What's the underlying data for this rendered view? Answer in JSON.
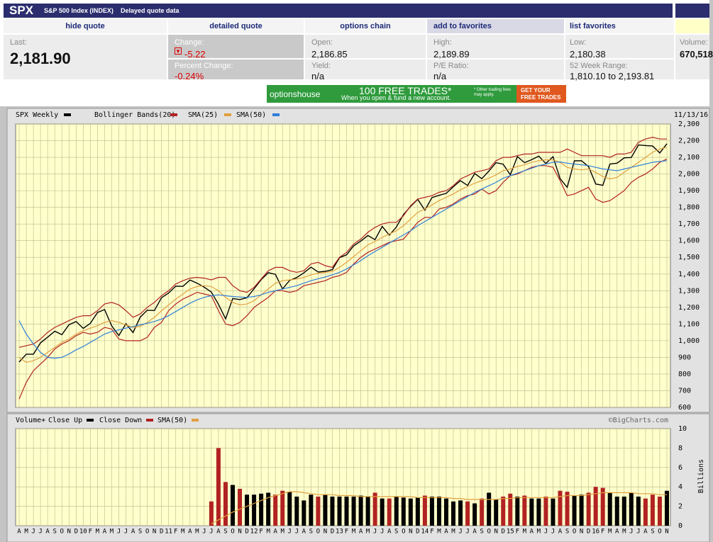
{
  "header": {
    "symbol": "SPX",
    "name": "S&P 500 Index (INDEX)",
    "note": "Delayed quote data"
  },
  "nav": [
    "hide quote",
    "detailed quote",
    "options chain",
    "add to favorites",
    "list favorites"
  ],
  "quote": [
    {
      "label": "Last:",
      "value": "2,181.90"
    },
    {
      "label": "Change:",
      "value": "-5.22"
    },
    {
      "label": "Percent Change:",
      "value": "-0.24%"
    },
    {
      "label": "Open:",
      "value": "2,186.85"
    },
    {
      "label": "Yield:",
      "value": "n/a"
    },
    {
      "label": "High:",
      "value": "2,189.89"
    },
    {
      "label": "P/E Ratio:",
      "value": "n/a"
    },
    {
      "label": "Low:",
      "value": "2,180.38"
    },
    {
      "label": "52 Week Range:",
      "value": "1,810.10 to 2,193.81"
    },
    {
      "label": "Volume:",
      "value": "670,518"
    }
  ],
  "banner": {
    "brand": "optionshouse",
    "headline": "100 FREE TRADES*",
    "subline": "When you open & fund a new account.",
    "fine_print": "* Other trading fees may apply.",
    "cta": "GET YOUR FREE TRADES"
  },
  "chart_data": [
    {
      "type": "line",
      "date": "11/13/16",
      "grid": true,
      "ylim": [
        600,
        2300
      ],
      "yticks": [
        600,
        700,
        800,
        900,
        {
          "value": 1000,
          "label": "1,000"
        },
        {
          "value": 1100,
          "label": "1,100"
        },
        {
          "value": 1200,
          "label": "1,200"
        },
        {
          "value": 1300,
          "label": "1,300"
        },
        {
          "value": 1400,
          "label": "1,400"
        },
        {
          "value": 1500,
          "label": "1,500"
        },
        {
          "value": 1600,
          "label": "1,600"
        },
        {
          "value": 1700,
          "label": "1,700"
        },
        {
          "value": 1800,
          "label": "1,800"
        },
        {
          "value": 1900,
          "label": "1,900"
        },
        {
          "value": 2000,
          "label": "2,000"
        },
        {
          "value": 2100,
          "label": "2,100"
        },
        {
          "value": 2200,
          "label": "2,200"
        },
        {
          "value": 2300,
          "label": "2,300"
        }
      ],
      "series": [
        {
          "name": "SPX Weekly",
          "color": "#000000",
          "values": [
            872,
            919,
            919,
            987,
            1021,
            1057,
            1036,
            1096,
            1115,
            1074,
            1104,
            1169,
            1187,
            1089,
            1031,
            1102,
            1049,
            1141,
            1183,
            1181,
            1258,
            1286,
            1327,
            1326,
            1364,
            1345,
            1321,
            1292,
            1219,
            1131,
            1253,
            1247,
            1258,
            1312,
            1366,
            1408,
            1398,
            1310,
            1362,
            1379,
            1407,
            1441,
            1412,
            1416,
            1426,
            1498,
            1515,
            1569,
            1598,
            1631,
            1606,
            1686,
            1633,
            1682,
            1757,
            1806,
            1848,
            1783,
            1859,
            1872,
            1884,
            1924,
            1960,
            1931,
            2003,
            1972,
            2018,
            2068,
            2059,
            1995,
            2105,
            2068,
            2086,
            2107,
            2063,
            2104,
            1972,
            1920,
            2079,
            2080,
            2044,
            1940,
            1932,
            2060,
            2065,
            2097,
            2099,
            2174,
            2171,
            2168,
            2126,
            2182
          ]
        },
        {
          "name": "Bollinger Bands(20)",
          "color": "#b22222",
          "values": [
            960,
            970,
            980,
            1010,
            1050,
            1080,
            1100,
            1120,
            1140,
            1150,
            1150,
            1180,
            1220,
            1230,
            1215,
            1180,
            1140,
            1160,
            1200,
            1230,
            1270,
            1300,
            1340,
            1360,
            1375,
            1380,
            1375,
            1365,
            1380,
            1380,
            1330,
            1300,
            1290,
            1320,
            1370,
            1420,
            1440,
            1440,
            1420,
            1410,
            1420,
            1460,
            1470,
            1450,
            1440,
            1500,
            1530,
            1580,
            1610,
            1650,
            1680,
            1700,
            1710,
            1710,
            1750,
            1810,
            1850,
            1860,
            1870,
            1890,
            1900,
            1930,
            1970,
            1990,
            2010,
            2020,
            2030,
            2080,
            2100,
            2100,
            2110,
            2120,
            2120,
            2130,
            2130,
            2130,
            2130,
            2150,
            2130,
            2110,
            2110,
            2110,
            2110,
            2100,
            2120,
            2120,
            2130,
            2190,
            2210,
            2220,
            2210,
            2210
          ],
          "lower": [
            650,
            750,
            820,
            860,
            900,
            950,
            980,
            1000,
            1030,
            1050,
            1040,
            1050,
            1080,
            1070,
            1010,
            1000,
            1000,
            1000,
            1020,
            1080,
            1110,
            1180,
            1220,
            1250,
            1270,
            1290,
            1280,
            1270,
            1180,
            1100,
            1090,
            1110,
            1150,
            1200,
            1230,
            1260,
            1300,
            1300,
            1290,
            1300,
            1330,
            1340,
            1350,
            1360,
            1380,
            1390,
            1410,
            1460,
            1500,
            1530,
            1550,
            1570,
            1590,
            1600,
            1610,
            1660,
            1710,
            1740,
            1740,
            1790,
            1800,
            1820,
            1850,
            1870,
            1880,
            1910,
            1880,
            1900,
            1950,
            1990,
            2000,
            2020,
            2040,
            2050,
            2050,
            2040,
            1960,
            1870,
            1880,
            1900,
            1920,
            1850,
            1830,
            1840,
            1870,
            1900,
            1950,
            1980,
            2000,
            2030,
            2070,
            2090
          ]
        },
        {
          "name": "SMA(25)",
          "color": "#e0a040",
          "values": [
            900,
            870,
            880,
            900,
            930,
            960,
            990,
            1010,
            1040,
            1060,
            1075,
            1090,
            1110,
            1120,
            1110,
            1095,
            1080,
            1085,
            1110,
            1140,
            1180,
            1215,
            1250,
            1280,
            1310,
            1325,
            1330,
            1325,
            1300,
            1260,
            1230,
            1215,
            1220,
            1240,
            1275,
            1310,
            1345,
            1360,
            1365,
            1370,
            1380,
            1395,
            1405,
            1410,
            1415,
            1440,
            1470,
            1505,
            1540,
            1575,
            1595,
            1620,
            1640,
            1660,
            1690,
            1730,
            1770,
            1790,
            1815,
            1840,
            1860,
            1880,
            1905,
            1925,
            1945,
            1960,
            1975,
            1995,
            2020,
            2030,
            2045,
            2055,
            2070,
            2080,
            2085,
            2085,
            2070,
            2040,
            2030,
            2025,
            2030,
            2010,
            1985,
            1970,
            1980,
            2010,
            2040,
            2070,
            2100,
            2130,
            2150,
            2160
          ]
        },
        {
          "name": "SMA(50)",
          "color": "#2f7fd8",
          "values": [
            1120,
            1040,
            980,
            930,
            900,
            895,
            900,
            920,
            945,
            965,
            990,
            1015,
            1040,
            1055,
            1065,
            1075,
            1085,
            1095,
            1105,
            1115,
            1130,
            1150,
            1175,
            1200,
            1225,
            1245,
            1260,
            1270,
            1275,
            1270,
            1265,
            1262,
            1260,
            1265,
            1275,
            1290,
            1300,
            1310,
            1320,
            1330,
            1345,
            1360,
            1372,
            1382,
            1395,
            1410,
            1430,
            1455,
            1480,
            1510,
            1535,
            1560,
            1585,
            1610,
            1635,
            1660,
            1690,
            1715,
            1740,
            1765,
            1790,
            1815,
            1840,
            1865,
            1890,
            1910,
            1930,
            1950,
            1975,
            1990,
            2005,
            2020,
            2035,
            2050,
            2060,
            2070,
            2072,
            2065,
            2060,
            2055,
            2050,
            2040,
            2030,
            2025,
            2020,
            2030,
            2040,
            2050,
            2060,
            2070,
            2075,
            2080
          ]
        }
      ]
    },
    {
      "type": "bar",
      "title": "Volume+",
      "credit": "©BigCharts.com",
      "y_label": "Billions",
      "grid": true,
      "ylim": [
        0,
        10
      ],
      "yticks": [
        0,
        2,
        4,
        6,
        8,
        10
      ],
      "categories": [
        "A",
        "M",
        "J",
        "J",
        "A",
        "S",
        "O",
        "N",
        "D",
        "10",
        "F",
        "M",
        "A",
        "M",
        "J",
        "J",
        "A",
        "S",
        "O",
        "N",
        "D",
        "11",
        "F",
        "M",
        "A",
        "M",
        "J",
        "J",
        "A",
        "S",
        "O",
        "N",
        "D",
        "12",
        "F",
        "M",
        "A",
        "M",
        "J",
        "J",
        "A",
        "S",
        "O",
        "N",
        "D",
        "13",
        "F",
        "M",
        "A",
        "M",
        "J",
        "J",
        "A",
        "S",
        "O",
        "N",
        "D",
        "14",
        "F",
        "M",
        "A",
        "M",
        "J",
        "J",
        "A",
        "S",
        "O",
        "N",
        "D",
        "15",
        "F",
        "M",
        "A",
        "M",
        "J",
        "J",
        "A",
        "S",
        "O",
        "N",
        "D",
        "16",
        "F",
        "M",
        "A",
        "M",
        "J",
        "J",
        "A",
        "S",
        "O",
        "N"
      ],
      "series": [
        {
          "name": "Close Up",
          "color": "#000000",
          "values": [
            null,
            null,
            null,
            null,
            null,
            null,
            null,
            null,
            null,
            null,
            null,
            null,
            null,
            null,
            null,
            null,
            null,
            null,
            null,
            null,
            null,
            null,
            null,
            null,
            null,
            null,
            null,
            null,
            null,
            null,
            4.2,
            null,
            3.2,
            3.2,
            3.3,
            3.4,
            null,
            null,
            3.5,
            3.0,
            2.6,
            3.2,
            null,
            3.2,
            3.0,
            3.0,
            3.0,
            3.0,
            3.1,
            3.0,
            null,
            2.8,
            null,
            3.0,
            2.9,
            2.8,
            2.9,
            null,
            3.0,
            3.0,
            2.8,
            2.5,
            2.6,
            null,
            2.3,
            null,
            3.4,
            2.7,
            null,
            null,
            3.0,
            null,
            2.8,
            2.8,
            null,
            2.8,
            null,
            null,
            3.1,
            3.2,
            null,
            null,
            null,
            3.4,
            3.0,
            3.0,
            3.4,
            3.0,
            null,
            null,
            null,
            3.6
          ]
        },
        {
          "name": "Close Down",
          "color": "#b22222",
          "values": [
            null,
            null,
            null,
            null,
            null,
            null,
            null,
            null,
            null,
            null,
            null,
            null,
            null,
            null,
            null,
            null,
            null,
            null,
            null,
            null,
            null,
            null,
            null,
            null,
            null,
            null,
            null,
            2.5,
            8.0,
            4.5,
            null,
            3.8,
            null,
            null,
            null,
            null,
            3.2,
            3.6,
            null,
            null,
            null,
            null,
            3.0,
            null,
            null,
            null,
            null,
            null,
            null,
            null,
            3.4,
            null,
            2.8,
            null,
            null,
            null,
            null,
            3.1,
            null,
            null,
            null,
            null,
            null,
            2.5,
            null,
            2.8,
            null,
            null,
            3.0,
            3.3,
            null,
            3.1,
            null,
            null,
            3.0,
            null,
            3.6,
            3.5,
            null,
            null,
            3.4,
            4.0,
            3.9,
            null,
            null,
            null,
            null,
            null,
            2.8,
            3.2,
            3.0,
            null
          ]
        },
        {
          "name": "SMA(50)",
          "type": "line",
          "color": "#e0a040",
          "values": [
            null,
            null,
            null,
            null,
            null,
            null,
            null,
            null,
            null,
            null,
            null,
            null,
            null,
            null,
            null,
            null,
            null,
            null,
            null,
            null,
            null,
            null,
            null,
            null,
            null,
            null,
            null,
            0.2,
            0.6,
            1.0,
            1.4,
            1.7,
            2.0,
            2.3,
            2.6,
            2.9,
            3.1,
            3.3,
            3.5,
            3.5,
            3.4,
            3.3,
            3.2,
            3.2,
            3.2,
            3.1,
            3.1,
            3.1,
            3.0,
            3.0,
            3.0,
            3.0,
            3.0,
            3.0,
            3.0,
            3.0,
            2.9,
            2.9,
            2.9,
            2.9,
            2.9,
            2.8,
            2.8,
            2.7,
            2.7,
            2.7,
            2.7,
            2.7,
            2.8,
            2.8,
            2.9,
            2.9,
            2.9,
            2.9,
            2.9,
            2.9,
            3.0,
            3.1,
            3.1,
            3.1,
            3.2,
            3.3,
            3.4,
            3.4,
            3.4,
            3.4,
            3.4,
            3.3,
            3.3,
            3.3,
            3.2,
            3.2
          ]
        }
      ]
    }
  ]
}
